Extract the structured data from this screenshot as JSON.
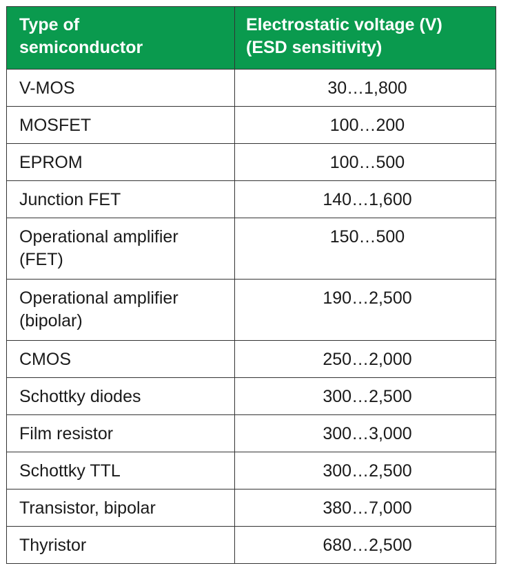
{
  "table": {
    "header_color": "#0a9a4e",
    "headers": [
      "Type of\nsemiconductor",
      "Electrostatic voltage (V)\n(ESD sensitivity)"
    ],
    "header_lines": [
      [
        "Type of",
        "semiconductor"
      ],
      [
        "Electrostatic voltage (V)",
        "(ESD sensitivity)"
      ]
    ],
    "rows": [
      {
        "type": "V-MOS",
        "voltage": "30…1,800"
      },
      {
        "type": "MOSFET",
        "voltage": "100…200"
      },
      {
        "type": "EPROM",
        "voltage": "100…500"
      },
      {
        "type": "Junction FET",
        "voltage": "140…1,600"
      },
      {
        "type": "Operational amplifier (FET)",
        "voltage": "150…500"
      },
      {
        "type": "Operational amplifier (bipolar)",
        "voltage": "190…2,500"
      },
      {
        "type": "CMOS",
        "voltage": "250…2,000"
      },
      {
        "type": "Schottky diodes",
        "voltage": "300…2,500"
      },
      {
        "type": "Film resistor",
        "voltage": "300…3,000"
      },
      {
        "type": "Schottky TTL",
        "voltage": "300…2,500"
      },
      {
        "type": "Transistor, bipolar",
        "voltage": "380…7,000"
      },
      {
        "type": "Thyristor",
        "voltage": "680…2,500"
      }
    ]
  }
}
